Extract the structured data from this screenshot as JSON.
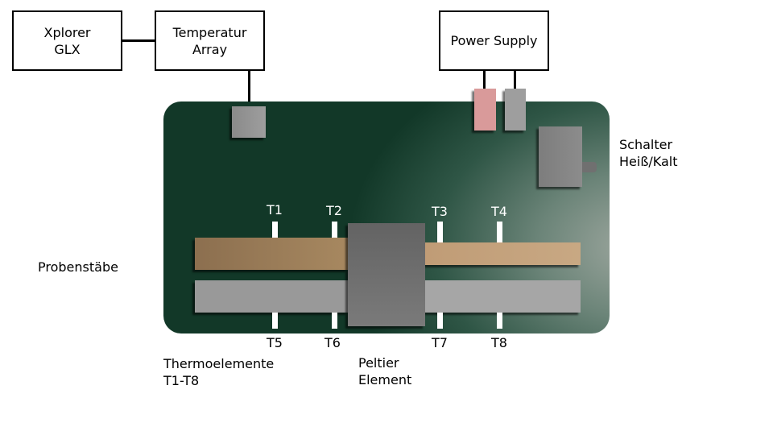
{
  "boxes": {
    "xplorer": "Xplorer\nGLX",
    "temperatur": "Temperatur\nArray",
    "power_supply": "Power Supply"
  },
  "labels": {
    "schalter": "Schalter\nHeiß/Kalt",
    "probenstaebe": "Probenstäbe",
    "thermoelemente": "Thermoelemente\nT1-T8",
    "peltier": "Peltier\nElement"
  },
  "sensors_top": [
    "T1",
    "T2",
    "T3",
    "T4"
  ],
  "sensors_bottom": [
    "T5",
    "T6",
    "T7",
    "T8"
  ],
  "colors": {
    "board_dark": "#123828",
    "rod_bronze": "#9c7c58",
    "rod_light_bronze": "#c4a27e",
    "rod_grey": "#9a9a9a",
    "peltier": "#6e6e6e",
    "terminal_red": "#d99a9a",
    "terminal_grey": "#a0a0a0"
  }
}
